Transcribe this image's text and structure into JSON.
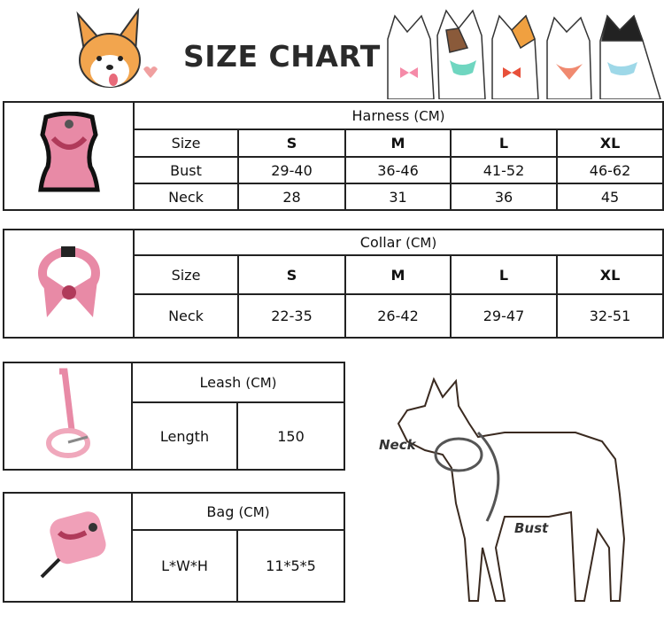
{
  "title": "SIZE CHART",
  "harness": {
    "header": "Harness",
    "unit": "(CM)",
    "rows": [
      [
        "Size",
        "S",
        "M",
        "L",
        "XL"
      ],
      [
        "Bust",
        "29-40",
        "36-46",
        "41-52",
        "46-62"
      ],
      [
        "Neck",
        "28",
        "31",
        "36",
        "45"
      ]
    ]
  },
  "collar": {
    "header": "Collar",
    "unit": "(CM)",
    "rows": [
      [
        "Size",
        "S",
        "M",
        "L",
        "XL"
      ],
      [
        "Neck",
        "22-35",
        "26-42",
        "29-47",
        "32-51"
      ]
    ]
  },
  "leash": {
    "header": "Leash",
    "unit": "(CM)",
    "label": "Length",
    "value": "150"
  },
  "bag": {
    "header": "Bag",
    "unit": "(CM)",
    "label": "L*W*H",
    "value": "11*5*5"
  },
  "diagram": {
    "neck_label": "Neck",
    "bust_label": "Bust"
  },
  "colors": {
    "product_pink": "#e88aa6",
    "product_dark": "#b03a5a",
    "border": "#222222"
  }
}
